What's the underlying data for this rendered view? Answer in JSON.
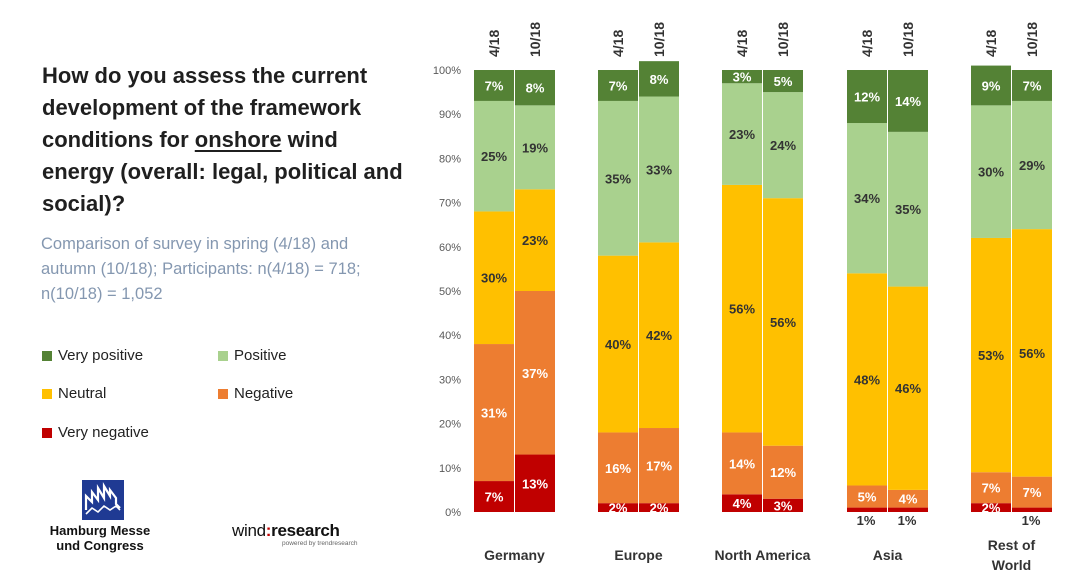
{
  "question": {
    "before": "How do you assess the current development of the framework conditions for ",
    "underlined": "onshore",
    "after": " wind energy (overall: legal, political and social)?"
  },
  "subtitle": "Comparison of survey in spring (4/18) and autumn (10/18); Participants: n(4/18) = 718; n(10/18) = 1,052",
  "legend": [
    {
      "label": "Very positive",
      "color": "#548235"
    },
    {
      "label": "Positive",
      "color": "#a9d18e"
    },
    {
      "label": "Neutral",
      "color": "#ffc000"
    },
    {
      "label": "Negative",
      "color": "#ed7d31"
    },
    {
      "label": "Very negative",
      "color": "#c00000"
    }
  ],
  "logos": {
    "hamburg_messe": [
      "Hamburg Messe",
      "und Congress"
    ],
    "windresearch_word_left": "wind",
    "windresearch_word_right": "research",
    "windresearch_tag": "powered by trendresearch"
  },
  "chart_data": {
    "type": "bar",
    "stacked": true,
    "y_unit": "%",
    "ylim": [
      0,
      100
    ],
    "y_ticks": [
      "0%",
      "10%",
      "20%",
      "30%",
      "40%",
      "50%",
      "60%",
      "70%",
      "80%",
      "90%",
      "100%"
    ],
    "grid": false,
    "legend_position": "left",
    "stack_order": [
      "Very negative",
      "Negative",
      "Neutral",
      "Positive",
      "Very positive"
    ],
    "colors": [
      "#c00000",
      "#ed7d31",
      "#ffc000",
      "#a9d18e",
      "#548235"
    ],
    "label_colors": [
      "#ffffff",
      "#ffffff",
      "#333333",
      "#333333",
      "#ffffff"
    ],
    "groups": [
      {
        "region": [
          "Germany"
        ],
        "bars": [
          {
            "period": "4/18",
            "values": [
              7,
              31,
              30,
              25,
              7
            ],
            "labels": [
              "7%",
              "31%",
              "30%",
              "25%",
              "7%"
            ]
          },
          {
            "period": "10/18",
            "values": [
              13,
              37,
              23,
              19,
              8
            ],
            "labels": [
              "13%",
              "37%",
              "23%",
              "19%",
              "8%"
            ]
          }
        ]
      },
      {
        "region": [
          "Europe"
        ],
        "bars": [
          {
            "period": "4/18",
            "values": [
              2,
              16,
              40,
              35,
              7
            ],
            "labels": [
              "2%",
              "16%",
              "40%",
              "35%",
              "7%"
            ]
          },
          {
            "period": "10/18",
            "values": [
              2,
              17,
              42,
              33,
              8
            ],
            "labels": [
              "2%",
              "17%",
              "42%",
              "33%",
              "8%"
            ]
          }
        ]
      },
      {
        "region": [
          "North America"
        ],
        "bars": [
          {
            "period": "4/18",
            "values": [
              4,
              14,
              56,
              23,
              3
            ],
            "labels": [
              "4%",
              "14%",
              "56%",
              "23%",
              "3%"
            ]
          },
          {
            "period": "10/18",
            "values": [
              3,
              12,
              56,
              24,
              5
            ],
            "labels": [
              "3%",
              "12%",
              "56%",
              "24%",
              "5%"
            ]
          }
        ]
      },
      {
        "region": [
          "Asia"
        ],
        "bars": [
          {
            "period": "4/18",
            "values": [
              1,
              5,
              48,
              34,
              12
            ],
            "labels": [
              "1%",
              "5%",
              "48%",
              "34%",
              "12%"
            ]
          },
          {
            "period": "10/18",
            "values": [
              1,
              4,
              46,
              35,
              14
            ],
            "labels": [
              "1%",
              "4%",
              "46%",
              "35%",
              "14%"
            ]
          }
        ]
      },
      {
        "region": [
          "Rest of",
          "World"
        ],
        "bars": [
          {
            "period": "4/18",
            "values": [
              2,
              7,
              53,
              30,
              9
            ],
            "labels": [
              "2%",
              "7%",
              "53%",
              "30%",
              "9%"
            ]
          },
          {
            "period": "10/18",
            "values": [
              1,
              7,
              56,
              29,
              7
            ],
            "labels": [
              "1%",
              "7%",
              "56%",
              "29%",
              "7%"
            ]
          }
        ]
      }
    ]
  }
}
